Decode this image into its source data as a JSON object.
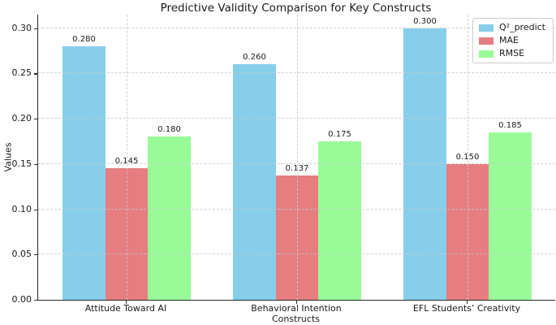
{
  "chart_data": {
    "type": "bar",
    "title": "Predictive Validity Comparison for Key Constructs",
    "xlabel": "Constructs",
    "ylabel": "Values",
    "categories": [
      "Attitude Toward AI",
      "Behavioral Intention",
      "EFL Students’ Creativity"
    ],
    "series": [
      {
        "name": "Q²_predict",
        "color": "#87CEEB",
        "values": [
          0.28,
          0.26,
          0.3
        ]
      },
      {
        "name": "MAE",
        "color": "#E57D81",
        "values": [
          0.145,
          0.137,
          0.15
        ]
      },
      {
        "name": "RMSE",
        "color": "#98FB98",
        "values": [
          0.18,
          0.175,
          0.185
        ]
      }
    ],
    "bar_value_labels": [
      [
        "0.280",
        "0.260",
        "0.300"
      ],
      [
        "0.145",
        "0.137",
        "0.150"
      ],
      [
        "0.180",
        "0.175",
        "0.185"
      ]
    ],
    "yticks": [
      "0.00",
      "0.05",
      "0.10",
      "0.15",
      "0.20",
      "0.25",
      "0.30"
    ],
    "ylim": [
      0,
      0.315
    ],
    "grid": "dashed both axes, drawn above bars",
    "legend_position": "upper right",
    "colors": {
      "q2_predict": "#87CEEB",
      "mae": "#E57D81",
      "rmse": "#98FB98",
      "grid": "#c9c9c9",
      "spine": "#2b2b2b",
      "text": "#1a1a1a",
      "background": "#ffffff"
    }
  }
}
